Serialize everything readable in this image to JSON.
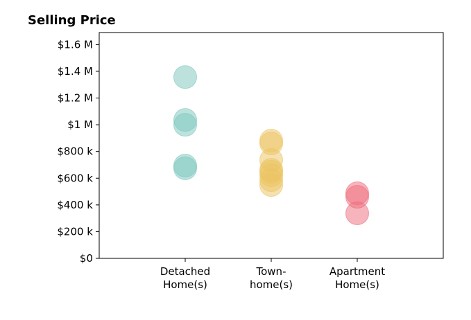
{
  "chart_data": {
    "type": "scatter",
    "title": "Selling Price",
    "categories": [
      "Detached\nHome(s)",
      "Town-\nhome(s)",
      "Apartment\nHome(s)"
    ],
    "values": [
      [
        1357000,
        1036000,
        1000000,
        694000,
        674000
      ],
      [
        881000,
        860000,
        736000,
        663000,
        648000,
        622000,
        585000,
        549000
      ],
      [
        487000,
        461000,
        337000
      ]
    ],
    "colors": [
      "#7cc6bd",
      "#ebc462",
      "#ee6b7b"
    ],
    "ylim": [
      0,
      1690000
    ],
    "yticks": [
      {
        "value": 0,
        "label": "$0"
      },
      {
        "value": 200000,
        "label": "$200 k"
      },
      {
        "value": 400000,
        "label": "$400 k"
      },
      {
        "value": 600000,
        "label": "$600 k"
      },
      {
        "value": 800000,
        "label": "$800 k"
      },
      {
        "value": 1000000,
        "label": "$1 M"
      },
      {
        "value": 1200000,
        "label": "$1.2 M"
      },
      {
        "value": 1400000,
        "label": "$1.4 M"
      },
      {
        "value": 1600000,
        "label": "$1.6 M"
      }
    ]
  }
}
